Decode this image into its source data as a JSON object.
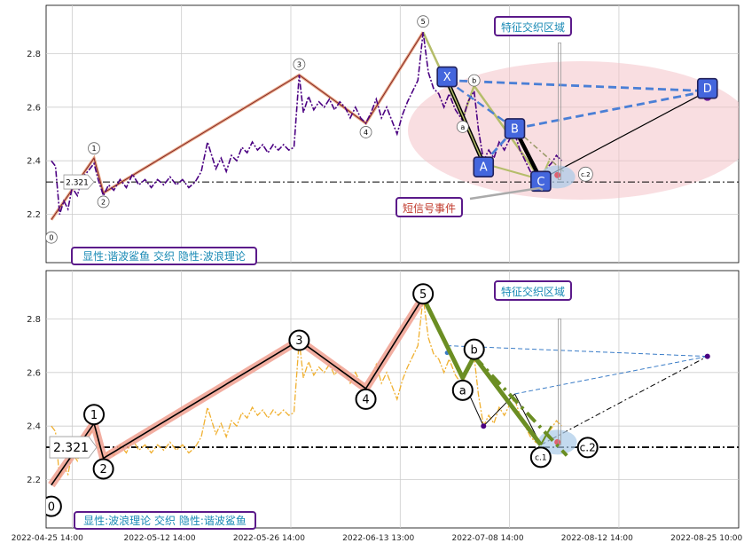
{
  "chart_data": [
    {
      "type": "line",
      "panel": "top",
      "y_ticks": [
        "2.8",
        "2.6",
        "2.4",
        "2.2"
      ],
      "ylim": [
        2.02,
        2.98
      ],
      "hline_value": 2.321,
      "hline_label": "2.321",
      "legend_text": "显性:谐波鲨鱼 交织 隐性:波浪理论",
      "zone_label": "特征交织区域",
      "short_signal_label": "短信号事件",
      "wave_points": [
        {
          "label": "0",
          "x": 0.0,
          "y": 2.18
        },
        {
          "label": "1",
          "x": 4.1,
          "y": 2.41
        },
        {
          "label": "2",
          "x": 5.0,
          "y": 2.28
        },
        {
          "label": "3",
          "x": 23.8,
          "y": 2.72
        },
        {
          "label": "4",
          "x": 30.2,
          "y": 2.54
        },
        {
          "label": "5",
          "x": 35.7,
          "y": 2.88
        },
        {
          "label": "a",
          "x": 39.5,
          "y": 2.56
        },
        {
          "label": "b",
          "x": 40.6,
          "y": 2.68
        },
        {
          "label": "c.2",
          "x": 49.5,
          "y": 2.29
        }
      ],
      "harmonic_points": [
        {
          "label": "X",
          "x": 38.0,
          "y": 2.7
        },
        {
          "label": "A",
          "x": 41.5,
          "y": 2.39
        },
        {
          "label": "B",
          "x": 44.5,
          "y": 2.52
        },
        {
          "label": "C",
          "x": 47.0,
          "y": 2.33
        },
        {
          "label": "D",
          "x": 63.0,
          "y": 2.66
        }
      ],
      "price_series": [
        [
          0,
          2.4
        ],
        [
          0.4,
          2.38
        ],
        [
          0.8,
          2.2
        ],
        [
          1.2,
          2.25
        ],
        [
          1.6,
          2.22
        ],
        [
          2.0,
          2.3
        ],
        [
          2.5,
          2.27
        ],
        [
          3.0,
          2.34
        ],
        [
          3.5,
          2.36
        ],
        [
          4.1,
          2.39
        ],
        [
          4.5,
          2.33
        ],
        [
          5.0,
          2.27
        ],
        [
          5.5,
          2.31
        ],
        [
          6.0,
          2.29
        ],
        [
          6.6,
          2.33
        ],
        [
          7.2,
          2.3
        ],
        [
          7.8,
          2.35
        ],
        [
          8.4,
          2.31
        ],
        [
          9.0,
          2.33
        ],
        [
          9.6,
          2.3
        ],
        [
          10.2,
          2.33
        ],
        [
          10.8,
          2.31
        ],
        [
          11.4,
          2.34
        ],
        [
          12.0,
          2.31
        ],
        [
          12.6,
          2.33
        ],
        [
          13.2,
          2.3
        ],
        [
          13.8,
          2.32
        ],
        [
          14.4,
          2.36
        ],
        [
          15.0,
          2.47
        ],
        [
          15.4,
          2.42
        ],
        [
          15.8,
          2.37
        ],
        [
          16.3,
          2.41
        ],
        [
          16.8,
          2.36
        ],
        [
          17.3,
          2.42
        ],
        [
          17.8,
          2.4
        ],
        [
          18.3,
          2.45
        ],
        [
          18.8,
          2.43
        ],
        [
          19.3,
          2.47
        ],
        [
          19.8,
          2.44
        ],
        [
          20.3,
          2.46
        ],
        [
          20.8,
          2.43
        ],
        [
          21.3,
          2.46
        ],
        [
          21.8,
          2.44
        ],
        [
          22.3,
          2.46
        ],
        [
          22.8,
          2.44
        ],
        [
          23.3,
          2.45
        ],
        [
          23.8,
          2.72
        ],
        [
          24.2,
          2.58
        ],
        [
          24.7,
          2.64
        ],
        [
          25.2,
          2.59
        ],
        [
          25.7,
          2.62
        ],
        [
          26.2,
          2.6
        ],
        [
          26.7,
          2.63
        ],
        [
          27.2,
          2.59
        ],
        [
          27.7,
          2.62
        ],
        [
          28.2,
          2.6
        ],
        [
          28.7,
          2.56
        ],
        [
          29.2,
          2.6
        ],
        [
          29.7,
          2.56
        ],
        [
          30.2,
          2.54
        ],
        [
          30.7,
          2.58
        ],
        [
          31.2,
          2.63
        ],
        [
          31.7,
          2.56
        ],
        [
          32.2,
          2.6
        ],
        [
          32.7,
          2.55
        ],
        [
          33.2,
          2.5
        ],
        [
          33.7,
          2.57
        ],
        [
          34.2,
          2.62
        ],
        [
          34.7,
          2.66
        ],
        [
          35.2,
          2.7
        ],
        [
          35.7,
          2.88
        ],
        [
          36.2,
          2.73
        ],
        [
          36.7,
          2.67
        ],
        [
          37.2,
          2.65
        ],
        [
          37.7,
          2.6
        ],
        [
          38.2,
          2.65
        ],
        [
          38.8,
          2.59
        ],
        [
          39.5,
          2.55
        ],
        [
          40.0,
          2.62
        ],
        [
          40.6,
          2.66
        ],
        [
          41.0,
          2.52
        ],
        [
          41.5,
          2.4
        ],
        [
          42.0,
          2.44
        ],
        [
          42.5,
          2.41
        ],
        [
          43.0,
          2.47
        ],
        [
          43.5,
          2.44
        ],
        [
          44.0,
          2.48
        ],
        [
          44.5,
          2.5
        ],
        [
          45.0,
          2.44
        ],
        [
          45.5,
          2.4
        ],
        [
          46.0,
          2.36
        ],
        [
          46.5,
          2.34
        ],
        [
          47.0,
          2.33
        ],
        [
          47.5,
          2.37
        ],
        [
          48.0,
          2.39
        ],
        [
          48.5,
          2.42
        ],
        [
          49.0,
          2.4
        ]
      ]
    },
    {
      "type": "line",
      "panel": "bottom",
      "y_ticks": [
        "2.8",
        "2.6",
        "2.4",
        "2.2"
      ],
      "ylim": [
        2.02,
        2.98
      ],
      "hline_value": 2.321,
      "hline_label": "2.321",
      "legend_text": "显性:波浪理论 交织 隐性:谐波鲨鱼",
      "zone_label": "特征交织区域",
      "x_tick_labels": [
        "2022-04-25 14:00",
        "2022-05-12 14:00",
        "2022-05-26 14:00",
        "2022-06-13 13:00",
        "2022-07-08 14:00",
        "2022-08-12 14:00",
        "2022-08-25 10:00"
      ],
      "wave_points": [
        {
          "label": "0",
          "x": 0.0,
          "y": 2.18
        },
        {
          "label": "1",
          "x": 4.1,
          "y": 2.41
        },
        {
          "label": "2",
          "x": 5.0,
          "y": 2.28
        },
        {
          "label": "3",
          "x": 23.8,
          "y": 2.72
        },
        {
          "label": "4",
          "x": 30.2,
          "y": 2.54
        },
        {
          "label": "5",
          "x": 35.7,
          "y": 2.88
        },
        {
          "label": "a",
          "x": 39.5,
          "y": 2.58
        },
        {
          "label": "b",
          "x": 40.6,
          "y": 2.66
        },
        {
          "label": "c.1",
          "x": 47.0,
          "y": 2.33
        },
        {
          "label": "c.2",
          "x": 49.5,
          "y": 2.29
        }
      ],
      "harmonic_points": [
        {
          "label": "X",
          "x": 38.0,
          "y": 2.7
        },
        {
          "label": "A",
          "x": 41.5,
          "y": 2.4
        },
        {
          "label": "B",
          "x": 44.5,
          "y": 2.52
        },
        {
          "label": "C",
          "x": 47.0,
          "y": 2.33
        },
        {
          "label": "D",
          "x": 63.0,
          "y": 2.66
        }
      ]
    }
  ]
}
